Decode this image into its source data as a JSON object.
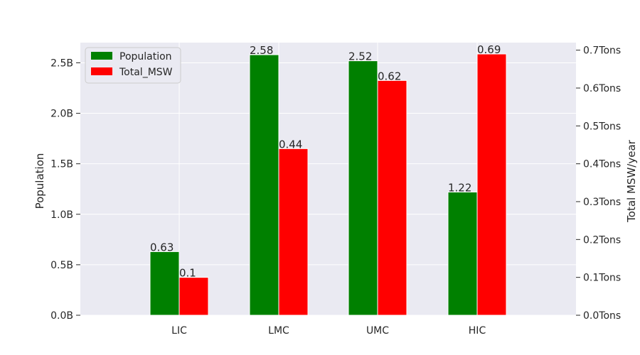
{
  "chart_data": {
    "type": "bar",
    "categories": [
      "LIC",
      "LMC",
      "UMC",
      "HIC"
    ],
    "series": [
      {
        "name": "Population",
        "axis": "left",
        "color": "#008000",
        "values": [
          0.63,
          2.58,
          2.52,
          1.22
        ],
        "data_labels": [
          "0.63",
          "2.58",
          "2.52",
          "1.22"
        ]
      },
      {
        "name": "Total_MSW",
        "axis": "right",
        "color": "#ff0000",
        "values": [
          0.1,
          0.44,
          0.62,
          0.69
        ],
        "data_labels": [
          "0.1",
          "0.44",
          "0.62",
          "0.69"
        ]
      }
    ],
    "ylabel_left": "Population",
    "ylabel_right": "Total MSW/year",
    "ylim_left": [
      0,
      2.7
    ],
    "ylim_right": [
      0,
      0.72
    ],
    "yticks_left": [
      {
        "value": 0.0,
        "label": "0.0B"
      },
      {
        "value": 0.5,
        "label": "0.5B"
      },
      {
        "value": 1.0,
        "label": "1.0B"
      },
      {
        "value": 1.5,
        "label": "1.5B"
      },
      {
        "value": 2.0,
        "label": "2.0B"
      },
      {
        "value": 2.5,
        "label": "2.5B"
      }
    ],
    "yticks_right": [
      {
        "value": 0.0,
        "label": "0.0Tons"
      },
      {
        "value": 0.1,
        "label": "0.1Tons"
      },
      {
        "value": 0.2,
        "label": "0.2Tons"
      },
      {
        "value": 0.3,
        "label": "0.3Tons"
      },
      {
        "value": 0.4,
        "label": "0.4Tons"
      },
      {
        "value": 0.5,
        "label": "0.5Tons"
      },
      {
        "value": 0.6,
        "label": "0.6Tons"
      },
      {
        "value": 0.7,
        "label": "0.7Tons"
      }
    ],
    "legend_position": "top-left",
    "grid": true,
    "background_color": "#eaeaf2"
  }
}
